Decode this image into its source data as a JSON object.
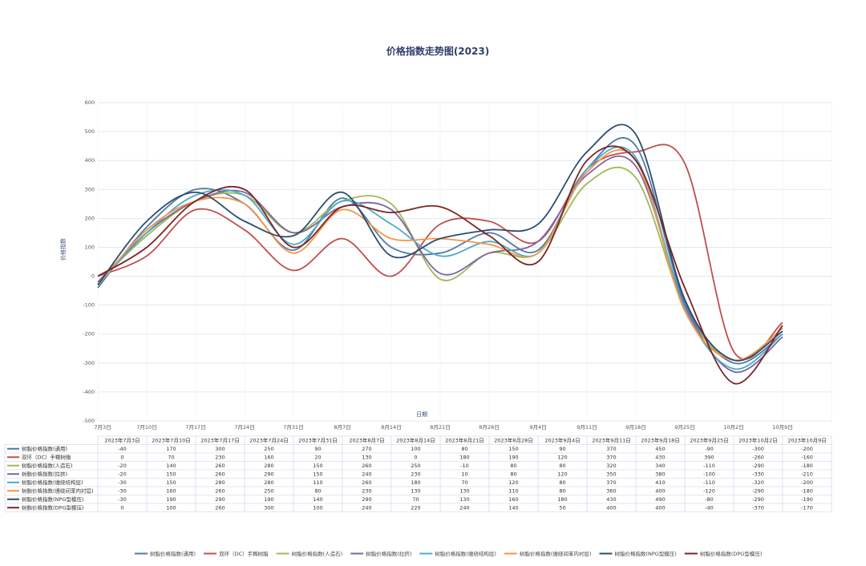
{
  "chart_data": {
    "type": "line",
    "title": "价格指数走势图(2023)",
    "xlabel": "日期",
    "ylabel": "价格指数",
    "ylim": [
      -500,
      600
    ],
    "y_ticks": [
      600,
      500,
      400,
      300,
      200,
      100,
      0,
      -100,
      -200,
      -300,
      -400,
      -500
    ],
    "grid": true,
    "legend_position": "bottom",
    "axis_categories": [
      "7月3日",
      "7月10日",
      "7月17日",
      "7月24日",
      "7月31日",
      "8月7日",
      "8月14日",
      "8月21日",
      "8月28日",
      "9月4日",
      "9月11日",
      "9月18日",
      "9月25日",
      "10月2日",
      "10月9日"
    ],
    "categories": [
      "2023年7月3日",
      "2023年7月10日",
      "2023年7月17日",
      "2023年7月24日",
      "2023年7月31日",
      "2023年8月7日",
      "2023年8月14日",
      "2023年8月21日",
      "2023年8月28日",
      "2023年9月4日",
      "2023年9月11日",
      "2023年9月18日",
      "2023年9月25日",
      "2023年10月2日",
      "2023年10月9日"
    ],
    "series": [
      {
        "name": "树脂价格指数(通用)",
        "color": "#4e79a7",
        "values": [
          -40,
          170,
          300,
          250,
          90,
          270,
          100,
          80,
          150,
          90,
          370,
          450,
          -90,
          -300,
          -200
        ]
      },
      {
        "name": "双环（DC）手糊树脂",
        "color": "#c0504d",
        "values": [
          0,
          70,
          230,
          160,
          20,
          130,
          0,
          180,
          190,
          120,
          370,
          430,
          390,
          -260,
          -160
        ]
      },
      {
        "name": "树脂价格指数(人造石)",
        "color": "#9bbb59",
        "values": [
          -20,
          140,
          260,
          280,
          150,
          260,
          250,
          -10,
          80,
          80,
          320,
          340,
          -110,
          -290,
          -180
        ]
      },
      {
        "name": "树脂价格指数(拉挤)",
        "color": "#8064a2",
        "values": [
          -20,
          150,
          260,
          290,
          150,
          240,
          230,
          10,
          80,
          120,
          350,
          380,
          -100,
          -330,
          -210
        ]
      },
      {
        "name": "树脂价格指数(缠绕结构层)",
        "color": "#4bacc6",
        "values": [
          -30,
          150,
          280,
          280,
          110,
          260,
          180,
          70,
          120,
          80,
          370,
          410,
          -110,
          -320,
          -200
        ]
      },
      {
        "name": "树脂价格指数(缠绕间苯内衬层)",
        "color": "#f79646",
        "values": [
          -30,
          160,
          260,
          250,
          80,
          230,
          130,
          130,
          110,
          80,
          360,
          400,
          -120,
          -290,
          -180
        ]
      },
      {
        "name": "树脂价格指数(NPG型模压)",
        "color": "#2c4d6e",
        "values": [
          -30,
          190,
          290,
          190,
          140,
          290,
          70,
          130,
          160,
          180,
          430,
          490,
          -80,
          -290,
          -190
        ]
      },
      {
        "name": "树脂价格指数(DPG型模压)",
        "color": "#7b2427",
        "values": [
          0,
          100,
          260,
          300,
          100,
          240,
          220,
          240,
          140,
          50,
          400,
          400,
          -40,
          -370,
          -170
        ]
      }
    ]
  }
}
